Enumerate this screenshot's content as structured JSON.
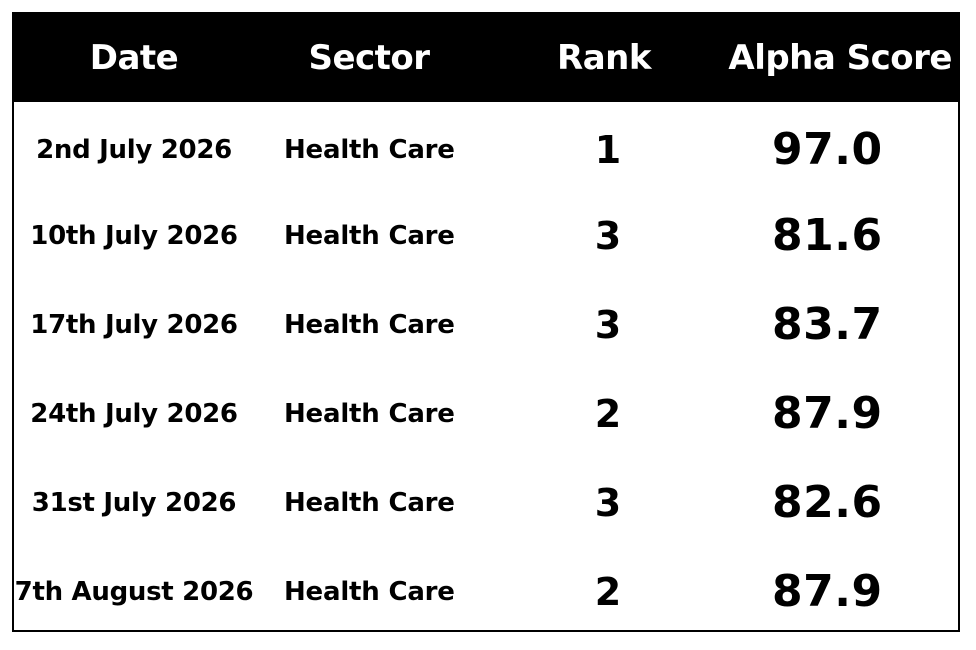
{
  "table": {
    "headers": {
      "date": "Date",
      "sector": "Sector",
      "rank": "Rank",
      "score": "Alpha Score"
    },
    "rows": [
      {
        "date": "2nd July 2026",
        "sector": "Health Care",
        "rank": "1",
        "score": "97.0"
      },
      {
        "date": "10th July 2026",
        "sector": "Health Care",
        "rank": "3",
        "score": "81.6"
      },
      {
        "date": "17th July 2026",
        "sector": "Health Care",
        "rank": "3",
        "score": "83.7"
      },
      {
        "date": "24th July 2026",
        "sector": "Health Care",
        "rank": "2",
        "score": "87.9"
      },
      {
        "date": "31st July 2026",
        "sector": "Health Care",
        "rank": "3",
        "score": "82.6"
      },
      {
        "date": "7th August 2026",
        "sector": "Health Care",
        "rank": "2",
        "score": "87.9"
      }
    ]
  },
  "colors": {
    "header_bg": "#000000",
    "header_text": "#ffffff",
    "body_text": "#000000",
    "border": "#000000"
  }
}
